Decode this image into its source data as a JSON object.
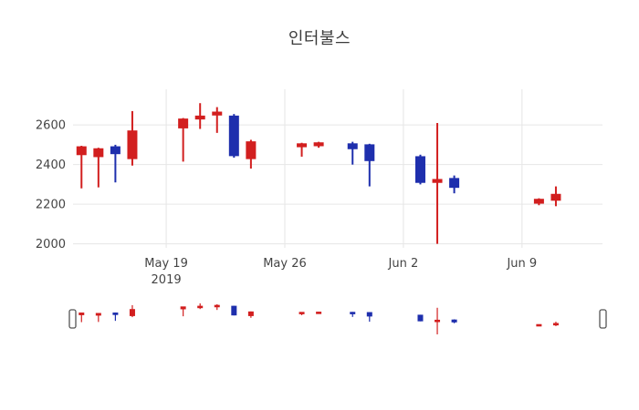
{
  "chart_data": {
    "type": "candlestick",
    "title": "인터불스",
    "xlabel": "",
    "ylabel": "",
    "grid": true,
    "grid_color": "#e6e6e6",
    "tick_color": "#444444",
    "increasing_color": "#d21f1f",
    "decreasing_color": "#1e2fad",
    "ylim": [
      1980,
      2780
    ],
    "xlim": [
      "2019-05-13T12:00:00Z",
      "2019-06-13T18:00:00Z"
    ],
    "y_ticks": [
      2000,
      2200,
      2400,
      2600
    ],
    "x_ticks": [
      {
        "date": "2019-05-19",
        "label": "May 19",
        "sub": "2019"
      },
      {
        "date": "2019-05-26",
        "label": "May 26",
        "sub": ""
      },
      {
        "date": "2019-06-02",
        "label": "Jun 2",
        "sub": ""
      },
      {
        "date": "2019-06-09",
        "label": "Jun 9",
        "sub": ""
      }
    ],
    "rangeslider": true,
    "candles": [
      {
        "date": "2019-05-14",
        "open": 2450,
        "high": 2495,
        "low": 2280,
        "close": 2490
      },
      {
        "date": "2019-05-15",
        "open": 2440,
        "high": 2485,
        "low": 2285,
        "close": 2480
      },
      {
        "date": "2019-05-16",
        "open": 2490,
        "high": 2500,
        "low": 2310,
        "close": 2455
      },
      {
        "date": "2019-05-17",
        "open": 2430,
        "high": 2670,
        "low": 2395,
        "close": 2570
      },
      {
        "date": "2019-05-20",
        "open": 2585,
        "high": 2635,
        "low": 2415,
        "close": 2630
      },
      {
        "date": "2019-05-21",
        "open": 2630,
        "high": 2710,
        "low": 2580,
        "close": 2645
      },
      {
        "date": "2019-05-22",
        "open": 2650,
        "high": 2690,
        "low": 2560,
        "close": 2665
      },
      {
        "date": "2019-05-23",
        "open": 2645,
        "high": 2655,
        "low": 2435,
        "close": 2445
      },
      {
        "date": "2019-05-24",
        "open": 2430,
        "high": 2525,
        "low": 2380,
        "close": 2515
      },
      {
        "date": "2019-05-27",
        "open": 2490,
        "high": 2510,
        "low": 2440,
        "close": 2505
      },
      {
        "date": "2019-05-28",
        "open": 2495,
        "high": 2515,
        "low": 2485,
        "close": 2510
      },
      {
        "date": "2019-05-30",
        "open": 2505,
        "high": 2515,
        "low": 2400,
        "close": 2480
      },
      {
        "date": "2019-05-31",
        "open": 2500,
        "high": 2505,
        "low": 2290,
        "close": 2420
      },
      {
        "date": "2019-06-03",
        "open": 2440,
        "high": 2450,
        "low": 2300,
        "close": 2310
      },
      {
        "date": "2019-06-04",
        "open": 2310,
        "high": 2610,
        "low": 2000,
        "close": 2325
      },
      {
        "date": "2019-06-05",
        "open": 2330,
        "high": 2345,
        "low": 2255,
        "close": 2285
      },
      {
        "date": "2019-06-10",
        "open": 2205,
        "high": 2230,
        "low": 2195,
        "close": 2225
      },
      {
        "date": "2019-06-11",
        "open": 2220,
        "high": 2290,
        "low": 2190,
        "close": 2250
      }
    ]
  }
}
